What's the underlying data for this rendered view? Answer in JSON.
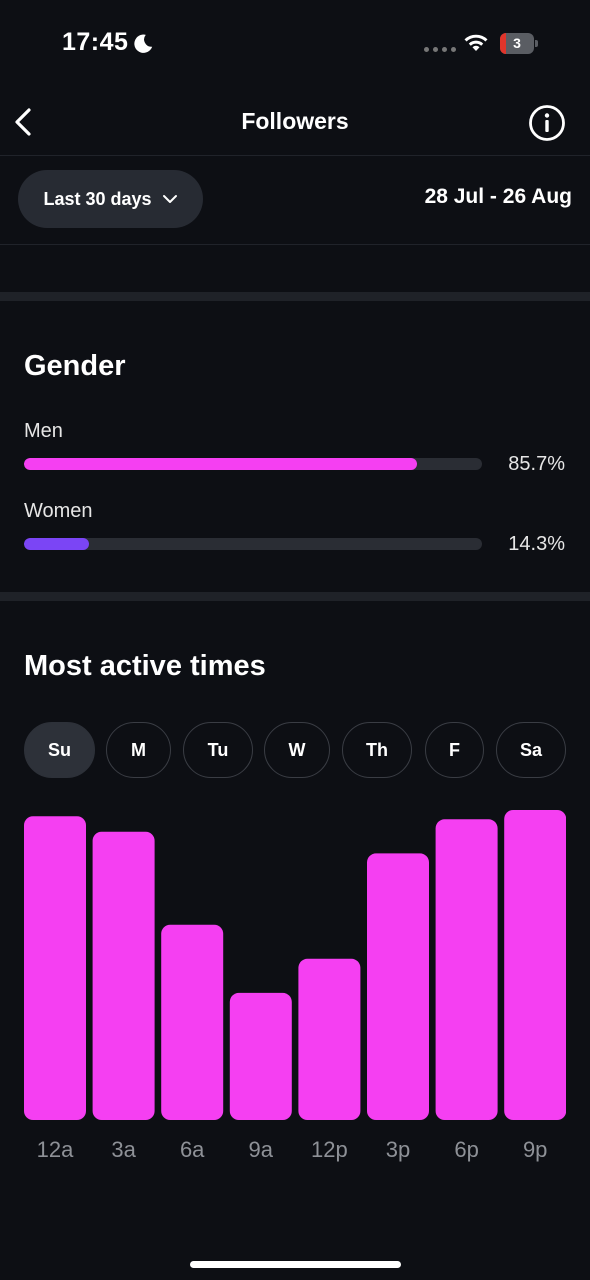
{
  "status_bar": {
    "time": "17:45",
    "moon_icon": "moon-icon",
    "wifi_icon": "wifi-icon",
    "battery_level": "3",
    "battery_color": "#e0352b"
  },
  "nav": {
    "title": "Followers",
    "back_icon": "chevron-left-icon",
    "info_icon": "info-icon"
  },
  "filter": {
    "period_label": "Last 30 days",
    "period_icon": "chevron-down-icon",
    "date_range": "28 Jul - 26 Aug"
  },
  "gender": {
    "title": "Gender",
    "items": [
      {
        "label": "Men",
        "value": "85.7%",
        "fraction": 0.857,
        "color": "#f53ff2"
      },
      {
        "label": "Women",
        "value": "14.3%",
        "fraction": 0.143,
        "color": "#7b45f5"
      }
    ]
  },
  "active_times": {
    "title": "Most active times",
    "days": [
      {
        "label": "Su",
        "selected": true
      },
      {
        "label": "M",
        "selected": false
      },
      {
        "label": "Tu",
        "selected": false
      },
      {
        "label": "W",
        "selected": false
      },
      {
        "label": "Th",
        "selected": false
      },
      {
        "label": "F",
        "selected": false
      },
      {
        "label": "Sa",
        "selected": false
      }
    ]
  },
  "chart_data": {
    "type": "bar",
    "categories": [
      "12a",
      "3a",
      "6a",
      "9a",
      "12p",
      "3p",
      "6p",
      "9p"
    ],
    "values": [
      98,
      93,
      63,
      41,
      52,
      86,
      97,
      100
    ],
    "ylim": [
      0,
      100
    ],
    "bar_color": "#f53ff2",
    "grid": false
  }
}
